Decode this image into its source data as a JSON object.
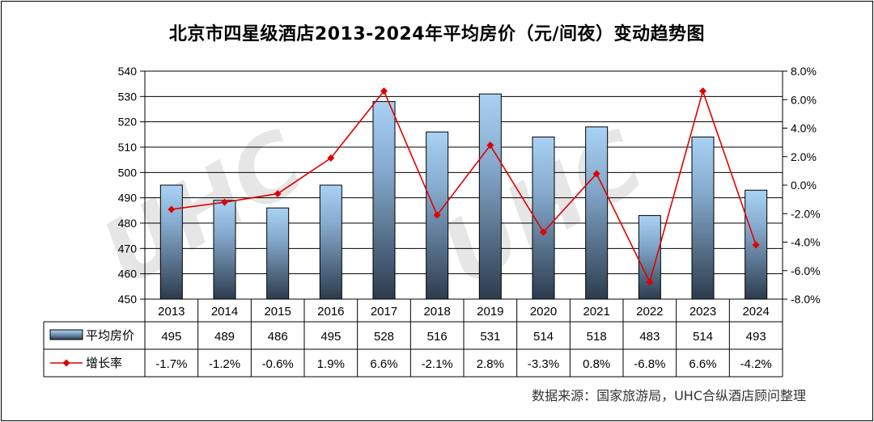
{
  "title": "北京市四星级酒店2013-2024年平均房价（元/间夜）变动趋势图",
  "source": "数据来源：国家旅游局，UHC合纵酒店顾问整理",
  "watermark": "UHC",
  "chart_data": {
    "type": "bar",
    "categories": [
      "2013",
      "2014",
      "2015",
      "2016",
      "2017",
      "2018",
      "2019",
      "2020",
      "2021",
      "2022",
      "2023",
      "2024"
    ],
    "series": [
      {
        "name": "平均房价",
        "type": "bar",
        "axis": "left",
        "values": [
          495,
          489,
          486,
          495,
          528,
          516,
          531,
          514,
          518,
          483,
          514,
          493
        ],
        "labels": [
          "495",
          "489",
          "486",
          "495",
          "528",
          "516",
          "531",
          "514",
          "518",
          "483",
          "514",
          "493"
        ]
      },
      {
        "name": "增长率",
        "type": "line",
        "axis": "right",
        "values": [
          -1.7,
          -1.2,
          -0.6,
          1.9,
          6.6,
          -2.1,
          2.8,
          -3.3,
          0.8,
          -6.8,
          6.6,
          -4.2
        ],
        "labels": [
          "-1.7%",
          "-1.2%",
          "-0.6%",
          "1.9%",
          "6.6%",
          "-2.1%",
          "2.8%",
          "-3.3%",
          "0.8%",
          "-6.8%",
          "6.6%",
          "-4.2%"
        ]
      }
    ],
    "y_left": {
      "min": 450,
      "max": 540,
      "ticks": [
        "450",
        "460",
        "470",
        "480",
        "490",
        "500",
        "510",
        "520",
        "530",
        "540"
      ]
    },
    "y_right": {
      "min": -8,
      "max": 8,
      "ticks": [
        "-8.0%",
        "-6.0%",
        "-4.0%",
        "-2.0%",
        "0.0%",
        "2.0%",
        "4.0%",
        "6.0%",
        "8.0%"
      ]
    },
    "grid": true,
    "legend": "data-table",
    "colors": {
      "bar_top": "#a9d2f5",
      "bar_bottom": "#2d3c4e",
      "bar_stroke": "#000000",
      "line": "#e00000",
      "marker": "#e00000"
    }
  }
}
